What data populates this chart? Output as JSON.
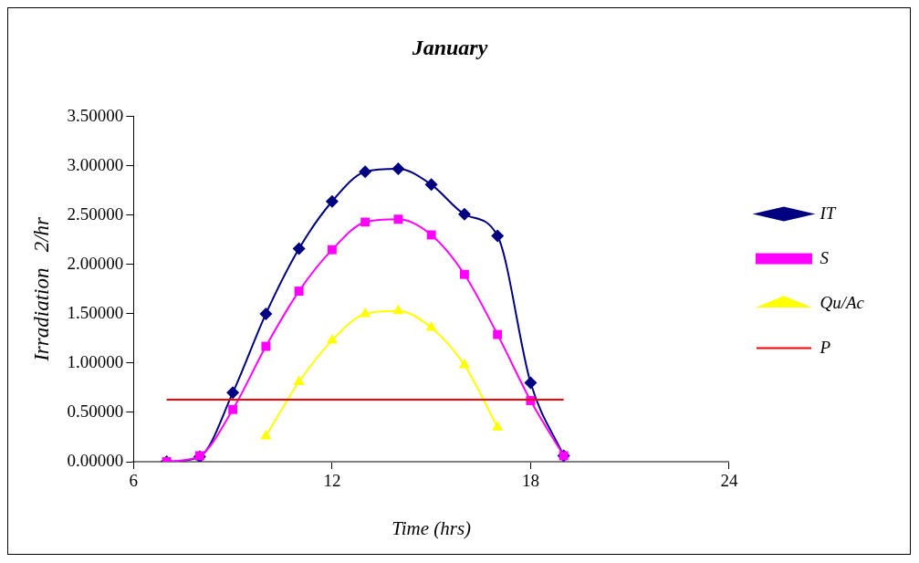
{
  "chart_data": {
    "type": "line",
    "title": "January",
    "xlabel": "Time (hrs)",
    "ylabel": "Irradiation   2/hr",
    "xlim": [
      6,
      24
    ],
    "xticks": [
      6,
      12,
      18,
      24
    ],
    "ylim": [
      0,
      3.5
    ],
    "yticks": [
      {
        "value": 0,
        "label": "0.00000"
      },
      {
        "value": 0.5,
        "label": "0.50000"
      },
      {
        "value": 1,
        "label": "1.00000"
      },
      {
        "value": 1.5,
        "label": "1.50000"
      },
      {
        "value": 2,
        "label": "2.00000"
      },
      {
        "value": 2.5,
        "label": "2.50000"
      },
      {
        "value": 3,
        "label": "3.00000"
      },
      {
        "value": 3.5,
        "label": "3.50000"
      }
    ],
    "grid": false,
    "legend": "right",
    "series": [
      {
        "name": "IT",
        "color": "#000080",
        "marker": "diamond",
        "x": [
          7,
          8,
          9,
          10,
          11,
          12,
          13,
          14,
          15,
          16,
          17,
          18,
          19
        ],
        "values": [
          0,
          0.05,
          0.7,
          1.5,
          2.16,
          2.64,
          2.94,
          2.97,
          2.81,
          2.51,
          2.29,
          0.8,
          0.06
        ]
      },
      {
        "name": "S",
        "color": "#ff00ff",
        "marker": "square",
        "x": [
          7,
          8,
          9,
          10,
          11,
          12,
          13,
          14,
          15,
          16,
          17,
          18,
          19
        ],
        "values": [
          0,
          0.06,
          0.53,
          1.17,
          1.73,
          2.15,
          2.43,
          2.46,
          2.3,
          1.9,
          1.29,
          0.62,
          0.06
        ]
      },
      {
        "name": "Qu/Ac",
        "color": "#ffff00",
        "marker": "triangle",
        "x": [
          10,
          11,
          12,
          13,
          14,
          15,
          16,
          17
        ],
        "values": [
          0.26,
          0.81,
          1.23,
          1.5,
          1.53,
          1.36,
          0.98,
          0.35
        ]
      },
      {
        "name": "P",
        "color": "#ff0000",
        "marker": "none",
        "x": [
          7,
          19
        ],
        "values": [
          0.63,
          0.63
        ]
      }
    ]
  }
}
